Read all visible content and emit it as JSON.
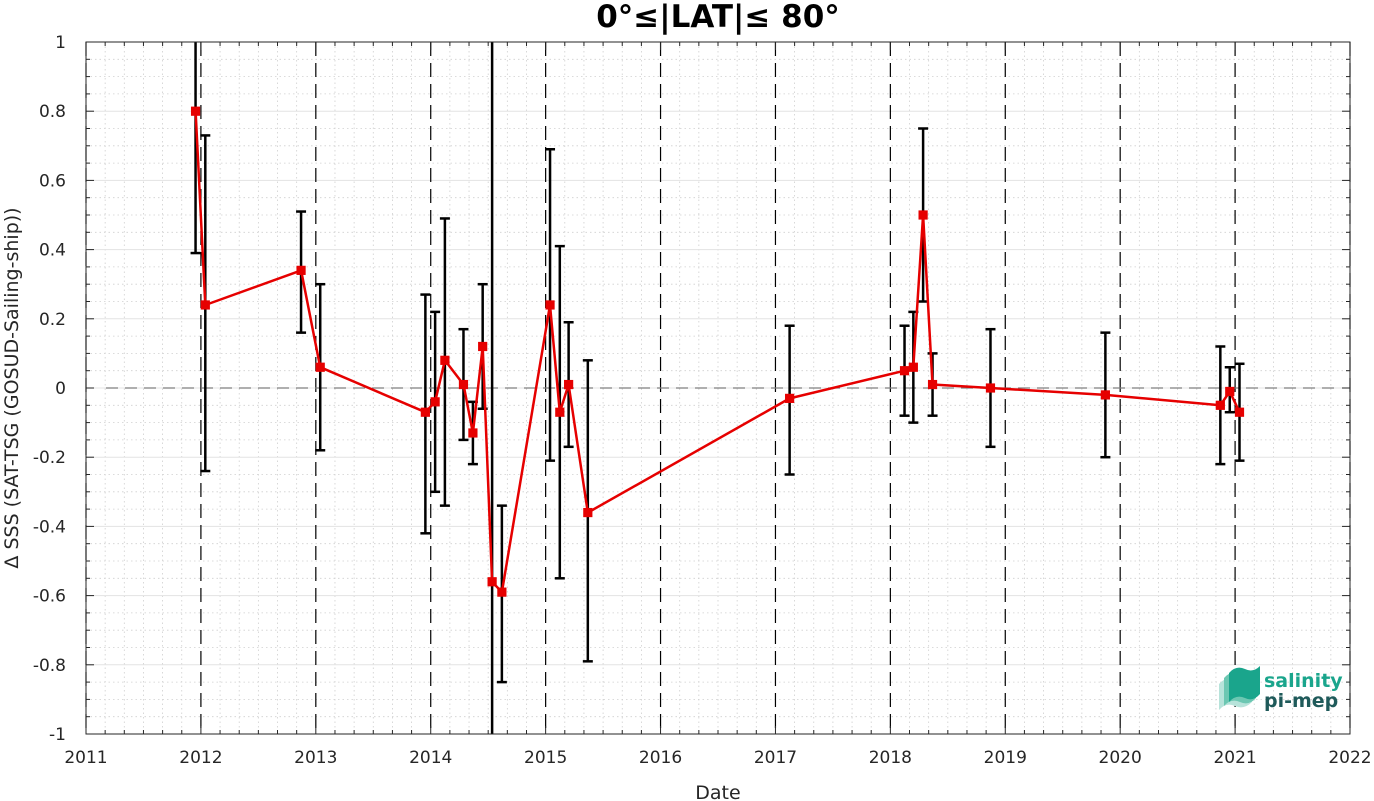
{
  "chart_data": {
    "type": "line",
    "title": "0°≤|LAT|≤ 80°",
    "xlabel": "Date",
    "ylabel": "Δ SSS (SAT-TSG (GOSUD-Sailing-ship))",
    "xlim": [
      "2011-01-01",
      "2022-01-01"
    ],
    "ylim": [
      -1,
      1
    ],
    "x_ticks": [
      "2011",
      "2012",
      "2013",
      "2014",
      "2015",
      "2016",
      "2017",
      "2018",
      "2019",
      "2020",
      "2021",
      "2022"
    ],
    "y_ticks": [
      "1",
      "0.8",
      "0.6",
      "0.4",
      "0.2",
      "0",
      "-0.2",
      "-0.4",
      "-0.6",
      "-0.8",
      "-1"
    ],
    "grid": true,
    "reference_line_y": 0,
    "series": [
      {
        "color": "#e60000",
        "marker": "square",
        "points": [
          {
            "x": "2011-12-15",
            "y": 0.8,
            "low": 0.39,
            "high": 1.0
          },
          {
            "x": "2012-01-15",
            "y": 0.24,
            "low": -0.24,
            "high": 0.73
          },
          {
            "x": "2012-11-15",
            "y": 0.34,
            "low": 0.16,
            "high": 0.51
          },
          {
            "x": "2013-01-15",
            "y": 0.06,
            "low": -0.18,
            "high": 0.3
          },
          {
            "x": "2013-12-15",
            "y": -0.07,
            "low": -0.42,
            "high": 0.27
          },
          {
            "x": "2014-01-15",
            "y": -0.04,
            "low": -0.3,
            "high": 0.22
          },
          {
            "x": "2014-02-15",
            "y": 0.08,
            "low": -0.34,
            "high": 0.49
          },
          {
            "x": "2014-04-15",
            "y": 0.01,
            "low": -0.15,
            "high": 0.17
          },
          {
            "x": "2014-05-15",
            "y": -0.13,
            "low": -0.22,
            "high": -0.04
          },
          {
            "x": "2014-06-15",
            "y": 0.12,
            "low": -0.06,
            "high": 0.3
          },
          {
            "x": "2014-07-15",
            "y": -0.56,
            "low": -1.0,
            "high": 1.0
          },
          {
            "x": "2014-08-15",
            "y": -0.59,
            "low": -0.85,
            "high": -0.34
          },
          {
            "x": "2015-01-15",
            "y": 0.24,
            "low": -0.21,
            "high": 0.69
          },
          {
            "x": "2015-02-15",
            "y": -0.07,
            "low": -0.55,
            "high": 0.41
          },
          {
            "x": "2015-03-15",
            "y": 0.01,
            "low": -0.17,
            "high": 0.19
          },
          {
            "x": "2015-05-15",
            "y": -0.36,
            "low": -0.79,
            "high": 0.08
          },
          {
            "x": "2017-02-15",
            "y": -0.03,
            "low": -0.25,
            "high": 0.18
          },
          {
            "x": "2018-02-15",
            "y": 0.05,
            "low": -0.08,
            "high": 0.18
          },
          {
            "x": "2018-03-15",
            "y": 0.06,
            "low": -0.1,
            "high": 0.22
          },
          {
            "x": "2018-04-15",
            "y": 0.5,
            "low": 0.25,
            "high": 0.75
          },
          {
            "x": "2018-05-15",
            "y": 0.01,
            "low": -0.08,
            "high": 0.1
          },
          {
            "x": "2018-11-15",
            "y": 0.0,
            "low": -0.17,
            "high": 0.17
          },
          {
            "x": "2019-11-15",
            "y": -0.02,
            "low": -0.2,
            "high": 0.16
          },
          {
            "x": "2020-11-15",
            "y": -0.05,
            "low": -0.22,
            "high": 0.12
          },
          {
            "x": "2020-12-15",
            "y": -0.01,
            "low": -0.07,
            "high": 0.06
          },
          {
            "x": "2021-01-15",
            "y": -0.07,
            "low": -0.21,
            "high": 0.07
          }
        ]
      }
    ]
  },
  "logo": {
    "line1": "salinity",
    "line2": "pi-mep",
    "color1": "#1aa58c",
    "color2": "#1f5a5a"
  }
}
